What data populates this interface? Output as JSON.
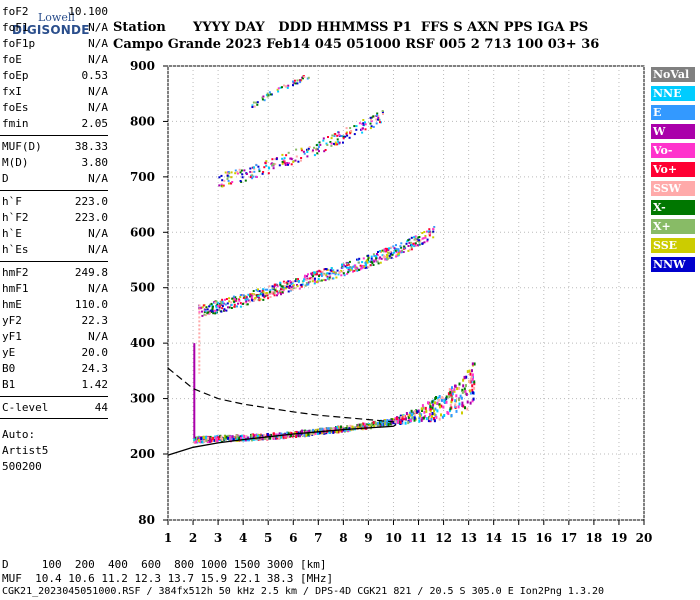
{
  "logo": {
    "line1": "Lowell",
    "line2": "DIGISONDE"
  },
  "header": {
    "row1": "Station      YYYY DAY   DDD HHMMSS P1  FFS S AXN PPS IGA PS",
    "row2": "Campo Grande 2023 Feb14 045 051000 RSF 005 2 713 100 03+ 36"
  },
  "side_params": [
    {
      "k": "foF2",
      "v": "10.100"
    },
    {
      "k": "foF1",
      "v": "N/A"
    },
    {
      "k": "foF1p",
      "v": "N/A"
    },
    {
      "k": "foE",
      "v": "N/A"
    },
    {
      "k": "foEp",
      "v": "0.53"
    },
    {
      "k": "fxI",
      "v": "N/A"
    },
    {
      "k": "foEs",
      "v": "N/A"
    },
    {
      "k": "fmin",
      "v": "2.05"
    },
    {
      "k": "MUF(D)",
      "v": "38.33"
    },
    {
      "k": "M(D)",
      "v": "3.80"
    },
    {
      "k": "D",
      "v": "N/A"
    },
    {
      "k": "h`F",
      "v": "223.0"
    },
    {
      "k": "h`F2",
      "v": "223.0"
    },
    {
      "k": "h`E",
      "v": "N/A"
    },
    {
      "k": "h`Es",
      "v": "N/A"
    },
    {
      "k": "hmF2",
      "v": "249.8"
    },
    {
      "k": "hmF1",
      "v": "N/A"
    },
    {
      "k": "hmE",
      "v": "110.0"
    },
    {
      "k": "yF2",
      "v": "22.3"
    },
    {
      "k": "yF1",
      "v": "N/A"
    },
    {
      "k": "yE",
      "v": "20.0"
    },
    {
      "k": "B0",
      "v": "24.3"
    },
    {
      "k": "B1",
      "v": "1.42"
    },
    {
      "k": "C-level",
      "v": "44"
    }
  ],
  "side_auto": [
    "Auto:",
    "Artist5",
    "500200"
  ],
  "legend": [
    {
      "label": "NoVal",
      "color": "#808080"
    },
    {
      "label": "NNE",
      "color": "#00ccff"
    },
    {
      "label": "E",
      "color": "#3399ff"
    },
    {
      "label": "W",
      "color": "#aa00aa"
    },
    {
      "label": "Vo-",
      "color": "#ff33cc"
    },
    {
      "label": "Vo+",
      "color": "#ff0033"
    },
    {
      "label": "SSW",
      "color": "#ffaaaa"
    },
    {
      "label": "X-",
      "color": "#007700"
    },
    {
      "label": "X+",
      "color": "#88bb66"
    },
    {
      "label": "SSE",
      "color": "#cccc00"
    },
    {
      "label": "NNW",
      "color": "#0000cc"
    }
  ],
  "chart_data": {
    "type": "scatter",
    "xlim": [
      1,
      20
    ],
    "ylim": [
      80,
      900
    ],
    "x_ticks": [
      "1",
      "2",
      "3",
      "4",
      "5",
      "6",
      "7",
      "8",
      "9",
      "10",
      "11",
      "12",
      "13",
      "14",
      "15",
      "16",
      "17",
      "18",
      "19",
      "20"
    ],
    "y_ticks": [
      "80",
      "200",
      "300",
      "400",
      "500",
      "600",
      "700",
      "800",
      "900"
    ],
    "traces": [
      {
        "name": "F-trace",
        "points": [
          [
            2.0,
            228
          ],
          [
            3,
            230
          ],
          [
            4,
            232
          ],
          [
            5,
            234
          ],
          [
            6,
            238
          ],
          [
            7,
            243
          ],
          [
            8,
            248
          ],
          [
            9,
            254
          ],
          [
            10,
            262
          ],
          [
            11,
            272
          ],
          [
            12,
            290
          ],
          [
            12.8,
            310
          ],
          [
            13.2,
            335
          ]
        ]
      },
      {
        "name": "2F-trace",
        "points": [
          [
            2.2,
            460
          ],
          [
            3,
            468
          ],
          [
            4,
            480
          ],
          [
            5,
            494
          ],
          [
            6,
            508
          ],
          [
            7,
            522
          ],
          [
            8,
            535
          ],
          [
            9,
            550
          ],
          [
            10,
            567
          ],
          [
            11,
            588
          ],
          [
            11.6,
            605
          ]
        ]
      },
      {
        "name": "3F-trace",
        "points": [
          [
            3,
            695
          ],
          [
            4,
            706
          ],
          [
            5,
            720
          ],
          [
            6,
            738
          ],
          [
            7,
            756
          ],
          [
            8,
            776
          ],
          [
            9,
            800
          ],
          [
            9.6,
            812
          ]
        ]
      },
      {
        "name": "4F-trace",
        "points": [
          [
            4.3,
            830
          ],
          [
            5,
            850
          ],
          [
            6,
            872
          ],
          [
            6.6,
            885
          ]
        ]
      }
    ],
    "profile_dashed": [
      [
        1,
        355
      ],
      [
        2,
        318
      ],
      [
        3,
        300
      ],
      [
        4,
        290
      ],
      [
        5,
        283
      ],
      [
        6,
        276
      ],
      [
        7,
        270
      ],
      [
        8,
        266
      ],
      [
        9,
        262
      ],
      [
        10,
        258
      ]
    ],
    "profile_solid": [
      [
        1,
        198
      ],
      [
        2,
        212
      ],
      [
        3,
        220
      ],
      [
        4,
        226
      ],
      [
        5,
        231
      ],
      [
        6,
        236
      ],
      [
        7,
        240
      ],
      [
        8,
        244
      ],
      [
        9,
        247
      ],
      [
        10,
        250
      ],
      [
        10.1,
        253
      ]
    ]
  },
  "footer": {
    "row1": "D     100  200  400  600  800 1000 1500 3000 [km]",
    "row2": "MUF  10.4 10.6 11.2 12.3 13.7 15.9 22.1 38.3 [MHz]",
    "row3": "CGK21_2023045051000.RSF / 384fx512h 50 kHz 2.5 km / DPS-4D CGK21 821 / 20.5 S 305.0 E Ion2Png 1.3.20"
  }
}
